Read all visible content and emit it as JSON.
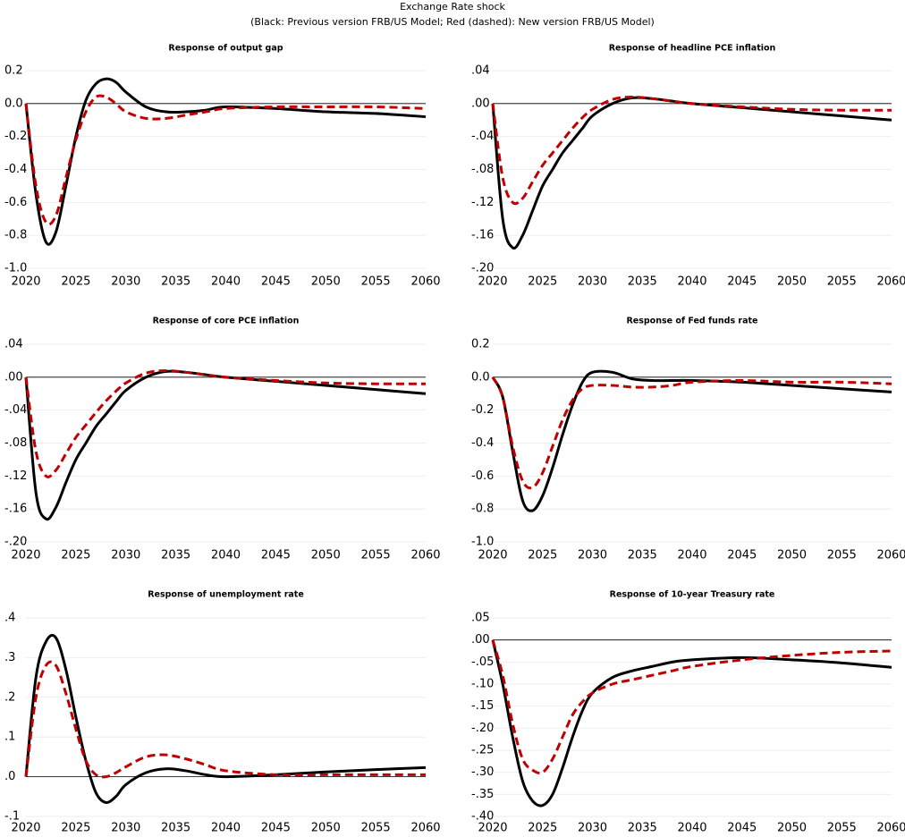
{
  "title": "Exchange Rate shock",
  "subtitle": "(Black: Previous version FRB/US Model; Red (dashed): New version FRB/US Model)",
  "chart_data": [
    {
      "type": "line",
      "title": "Response of output gap",
      "x": [
        2020,
        2021,
        2022,
        2023,
        2024,
        2025,
        2026,
        2027,
        2028,
        2029,
        2030,
        2032,
        2034,
        2036,
        2038,
        2040,
        2045,
        2050,
        2055,
        2060
      ],
      "series": [
        {
          "color": "#000000",
          "dashed": false,
          "values": [
            0,
            -0.55,
            -0.84,
            -0.78,
            -0.5,
            -0.2,
            0.02,
            0.12,
            0.15,
            0.13,
            0.07,
            -0.02,
            -0.05,
            -0.05,
            -0.04,
            -0.02,
            -0.03,
            -0.05,
            -0.06,
            -0.08
          ]
        },
        {
          "color": "#c00000",
          "dashed": true,
          "values": [
            0,
            -0.5,
            -0.72,
            -0.68,
            -0.45,
            -0.22,
            -0.05,
            0.04,
            0.04,
            0.0,
            -0.05,
            -0.09,
            -0.09,
            -0.07,
            -0.05,
            -0.03,
            -0.02,
            -0.02,
            -0.02,
            -0.03
          ]
        }
      ],
      "xlim": [
        2020,
        2060
      ],
      "xticks": [
        2020,
        2025,
        2030,
        2035,
        2040,
        2045,
        2050,
        2055,
        2060
      ],
      "ylim": [
        -1.0,
        0.2
      ],
      "yticks": [
        0.2,
        {
          "value": 0,
          "label": "0.0"
        },
        -0.2,
        -0.4,
        -0.6,
        -0.8,
        {
          "value": -1,
          "label": "-1.0"
        }
      ],
      "grid": true,
      "zero_line": true
    },
    {
      "type": "line",
      "title": "Response of headline PCE inflation",
      "x": [
        2020,
        2021,
        2022,
        2023,
        2024,
        2025,
        2026,
        2027,
        2028,
        2029,
        2030,
        2032,
        2034,
        2036,
        2038,
        2040,
        2045,
        2050,
        2055,
        2060
      ],
      "series": [
        {
          "color": "#000000",
          "dashed": false,
          "values": [
            0,
            -0.14,
            -0.175,
            -0.16,
            -0.13,
            -0.1,
            -0.08,
            -0.06,
            -0.045,
            -0.03,
            -0.015,
            0.0,
            0.007,
            0.006,
            0.003,
            0.0,
            -0.005,
            -0.01,
            -0.015,
            -0.02
          ]
        },
        {
          "color": "#c00000",
          "dashed": true,
          "values": [
            0,
            -0.09,
            -0.12,
            -0.115,
            -0.095,
            -0.075,
            -0.06,
            -0.045,
            -0.03,
            -0.017,
            -0.007,
            0.005,
            0.008,
            0.006,
            0.003,
            0.0,
            -0.004,
            -0.007,
            -0.008,
            -0.008
          ]
        }
      ],
      "xlim": [
        2020,
        2060
      ],
      "xticks": [
        2020,
        2025,
        2030,
        2035,
        2040,
        2045,
        2050,
        2055,
        2060
      ],
      "ylim": [
        -0.2,
        0.04
      ],
      "yticks": [
        {
          "value": 0.04,
          "label": ".04"
        },
        {
          "value": 0,
          "label": ".00"
        },
        {
          "value": -0.04,
          "label": "-.04"
        },
        {
          "value": -0.08,
          "label": "-.08"
        },
        {
          "value": -0.12,
          "label": "-.12"
        },
        {
          "value": -0.16,
          "label": "-.16"
        },
        {
          "value": -0.2,
          "label": "-.20"
        }
      ],
      "grid": true,
      "zero_line": true
    },
    {
      "type": "line",
      "title": "Response of core PCE inflation",
      "x": [
        2020,
        2021,
        2022,
        2023,
        2024,
        2025,
        2026,
        2027,
        2028,
        2029,
        2030,
        2032,
        2034,
        2036,
        2038,
        2040,
        2045,
        2050,
        2055,
        2060
      ],
      "series": [
        {
          "color": "#000000",
          "dashed": false,
          "values": [
            0,
            -0.14,
            -0.172,
            -0.158,
            -0.128,
            -0.1,
            -0.08,
            -0.06,
            -0.045,
            -0.03,
            -0.016,
            0.0,
            0.007,
            0.006,
            0.003,
            0.0,
            -0.005,
            -0.01,
            -0.015,
            -0.02
          ]
        },
        {
          "color": "#c00000",
          "dashed": true,
          "values": [
            0,
            -0.09,
            -0.12,
            -0.113,
            -0.093,
            -0.073,
            -0.058,
            -0.043,
            -0.029,
            -0.017,
            -0.007,
            0.005,
            0.008,
            0.006,
            0.003,
            0.0,
            -0.004,
            -0.007,
            -0.008,
            -0.008
          ]
        }
      ],
      "xlim": [
        2020,
        2060
      ],
      "xticks": [
        2020,
        2025,
        2030,
        2035,
        2040,
        2045,
        2050,
        2055,
        2060
      ],
      "ylim": [
        -0.2,
        0.04
      ],
      "yticks": [
        {
          "value": 0.04,
          "label": ".04"
        },
        {
          "value": 0,
          "label": ".00"
        },
        {
          "value": -0.04,
          "label": "-.04"
        },
        {
          "value": -0.08,
          "label": "-.08"
        },
        {
          "value": -0.12,
          "label": "-.12"
        },
        {
          "value": -0.16,
          "label": "-.16"
        },
        {
          "value": -0.2,
          "label": "-.20"
        }
      ],
      "grid": true,
      "zero_line": true
    },
    {
      "type": "line",
      "title": "Response of Fed funds rate",
      "x": [
        2020,
        2021,
        2022,
        2023,
        2024,
        2025,
        2026,
        2027,
        2028,
        2029,
        2030,
        2032,
        2034,
        2036,
        2038,
        2040,
        2045,
        2050,
        2055,
        2060
      ],
      "series": [
        {
          "color": "#000000",
          "dashed": false,
          "values": [
            0,
            -0.12,
            -0.45,
            -0.75,
            -0.81,
            -0.72,
            -0.55,
            -0.35,
            -0.17,
            -0.03,
            0.03,
            0.03,
            -0.01,
            -0.02,
            -0.02,
            -0.02,
            -0.03,
            -0.05,
            -0.07,
            -0.09
          ]
        },
        {
          "color": "#c00000",
          "dashed": true,
          "values": [
            0,
            -0.12,
            -0.42,
            -0.63,
            -0.67,
            -0.58,
            -0.42,
            -0.26,
            -0.14,
            -0.07,
            -0.05,
            -0.05,
            -0.06,
            -0.06,
            -0.05,
            -0.03,
            -0.02,
            -0.03,
            -0.03,
            -0.04
          ]
        }
      ],
      "xlim": [
        2020,
        2060
      ],
      "xticks": [
        2020,
        2025,
        2030,
        2035,
        2040,
        2045,
        2050,
        2055,
        2060
      ],
      "ylim": [
        -1.0,
        0.2
      ],
      "yticks": [
        0.2,
        {
          "value": 0,
          "label": "0.0"
        },
        -0.2,
        -0.4,
        -0.6,
        -0.8,
        {
          "value": -1,
          "label": "-1.0"
        }
      ],
      "grid": true,
      "zero_line": true
    },
    {
      "type": "line",
      "title": "Response of unemployment rate",
      "x": [
        2020,
        2021,
        2022,
        2023,
        2024,
        2025,
        2026,
        2027,
        2028,
        2029,
        2030,
        2032,
        2034,
        2036,
        2038,
        2040,
        2045,
        2050,
        2055,
        2060
      ],
      "series": [
        {
          "color": "#000000",
          "dashed": false,
          "values": [
            0,
            0.25,
            0.34,
            0.35,
            0.27,
            0.15,
            0.04,
            -0.04,
            -0.065,
            -0.05,
            -0.02,
            0.01,
            0.02,
            0.015,
            0.005,
            0.0,
            0.005,
            0.012,
            0.018,
            0.023
          ]
        },
        {
          "color": "#c00000",
          "dashed": true,
          "values": [
            0,
            0.2,
            0.28,
            0.28,
            0.21,
            0.12,
            0.04,
            0.005,
            0.0,
            0.01,
            0.025,
            0.05,
            0.055,
            0.045,
            0.03,
            0.015,
            0.005,
            0.005,
            0.005,
            0.005
          ]
        }
      ],
      "xlim": [
        2020,
        2060
      ],
      "xticks": [
        2020,
        2025,
        2030,
        2035,
        2040,
        2045,
        2050,
        2055,
        2060
      ],
      "ylim": [
        -0.1,
        0.4
      ],
      "yticks": [
        {
          "value": 0.4,
          "label": ".4"
        },
        {
          "value": 0.3,
          "label": ".3"
        },
        {
          "value": 0.2,
          "label": ".2"
        },
        {
          "value": 0.1,
          "label": ".1"
        },
        {
          "value": 0,
          "label": ".0"
        },
        {
          "value": -0.1,
          "label": "-.1"
        }
      ],
      "grid": true,
      "zero_line": true
    },
    {
      "type": "line",
      "title": "Response of 10-year Treasury rate",
      "x": [
        2020,
        2021,
        2022,
        2023,
        2024,
        2025,
        2026,
        2027,
        2028,
        2029,
        2030,
        2032,
        2034,
        2036,
        2038,
        2040,
        2045,
        2050,
        2055,
        2060
      ],
      "series": [
        {
          "color": "#000000",
          "dashed": false,
          "values": [
            0,
            -0.1,
            -0.22,
            -0.32,
            -0.365,
            -0.375,
            -0.35,
            -0.29,
            -0.22,
            -0.16,
            -0.12,
            -0.085,
            -0.07,
            -0.06,
            -0.05,
            -0.045,
            -0.04,
            -0.045,
            -0.052,
            -0.062
          ]
        },
        {
          "color": "#c00000",
          "dashed": true,
          "values": [
            0,
            -0.08,
            -0.19,
            -0.27,
            -0.295,
            -0.3,
            -0.27,
            -0.22,
            -0.17,
            -0.14,
            -0.12,
            -0.1,
            -0.09,
            -0.08,
            -0.07,
            -0.06,
            -0.045,
            -0.035,
            -0.028,
            -0.025
          ]
        }
      ],
      "xlim": [
        2020,
        2060
      ],
      "xticks": [
        2020,
        2025,
        2030,
        2035,
        2040,
        2045,
        2050,
        2055,
        2060
      ],
      "ylim": [
        -0.4,
        0.05
      ],
      "yticks": [
        {
          "value": 0.05,
          "label": ".05"
        },
        {
          "value": 0,
          "label": ".00"
        },
        {
          "value": -0.05,
          "label": "-.05"
        },
        {
          "value": -0.1,
          "label": "-.10"
        },
        {
          "value": -0.15,
          "label": "-.15"
        },
        {
          "value": -0.2,
          "label": "-.20"
        },
        {
          "value": -0.25,
          "label": "-.25"
        },
        {
          "value": -0.3,
          "label": "-.30"
        },
        {
          "value": -0.35,
          "label": "-.35"
        },
        {
          "value": -0.4,
          "label": "-.40"
        }
      ],
      "grid": true,
      "zero_line": true
    }
  ]
}
